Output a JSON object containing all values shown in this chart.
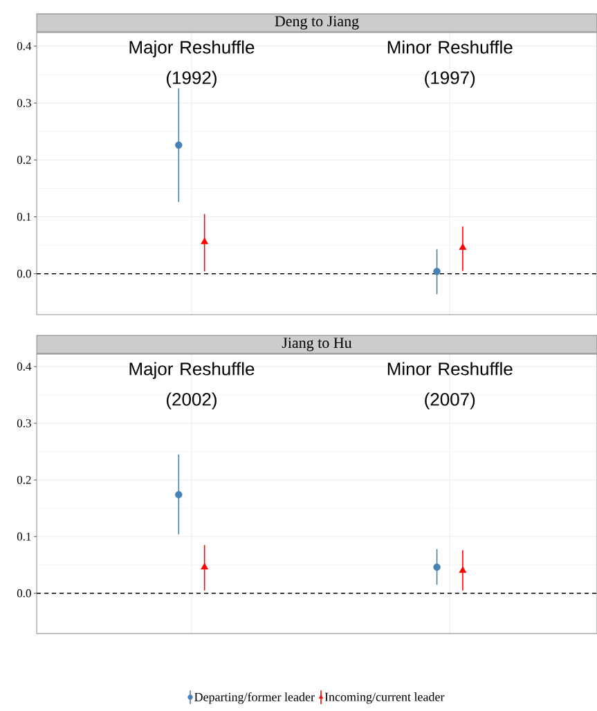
{
  "chart_data": [
    {
      "type": "scatter",
      "title": "Deng to Jiang",
      "categories": [
        null,
        null
      ],
      "annotations": [
        "Major Reshuffle (1992)",
        "Minor Reshuffle (1997)"
      ],
      "ylim": [
        -0.072,
        0.424
      ],
      "yticks": [
        {
          "value": 0,
          "label": "0.0"
        },
        {
          "value": 0.1,
          "label": "0.1"
        },
        {
          "value": 0.2,
          "label": "0.2"
        },
        {
          "value": 0.3,
          "label": "0.3"
        },
        {
          "value": 0.4,
          "label": "0.4"
        }
      ],
      "grid": true,
      "tick_labels": "y",
      "ref_lines": [
        {
          "axis": "y",
          "value": 0,
          "color": "#000000",
          "line_style": "dashed"
        }
      ],
      "series": [
        {
          "color": "#4682b4",
          "marker": "circle",
          "values": [
            0.226,
            0.004
          ],
          "errors": [
            [
              0.126,
              0.326
            ],
            [
              -0.036,
              0.043
            ]
          ]
        },
        {
          "color": "#ff0000",
          "marker": "triangle",
          "values": [
            0.056,
            0.046
          ],
          "errors": [
            [
              0.004,
              0.105
            ],
            [
              0.005,
              0.083
            ]
          ]
        }
      ]
    },
    {
      "type": "scatter",
      "title": "Jiang to Hu",
      "categories": [
        null,
        null
      ],
      "annotations": [
        "Major Reshuffle (2002)",
        "Minor Reshuffle (2007)"
      ],
      "ylim": [
        -0.071,
        0.422
      ],
      "yticks": [
        {
          "value": 0,
          "label": "0.0"
        },
        {
          "value": 0.1,
          "label": "0.1"
        },
        {
          "value": 0.2,
          "label": "0.2"
        },
        {
          "value": 0.3,
          "label": "0.3"
        },
        {
          "value": 0.4,
          "label": "0.4"
        }
      ],
      "grid": true,
      "tick_labels": "y",
      "legend": "bottom",
      "ref_lines": [
        {
          "axis": "y",
          "value": 0,
          "color": "#000000",
          "line_style": "dashed"
        }
      ],
      "series": [
        {
          "name": "Departing/former leader",
          "color": "#4682b4",
          "marker": "circle",
          "values": [
            0.174,
            0.046
          ],
          "errors": [
            [
              0.104,
              0.245
            ],
            [
              0.015,
              0.078
            ]
          ]
        },
        {
          "name": "Incoming/current leader",
          "color": "#ff0000",
          "marker": "triangle",
          "values": [
            0.046,
            0.04
          ],
          "errors": [
            [
              0.005,
              0.085
            ],
            [
              0.005,
              0.076
            ]
          ]
        }
      ]
    }
  ]
}
